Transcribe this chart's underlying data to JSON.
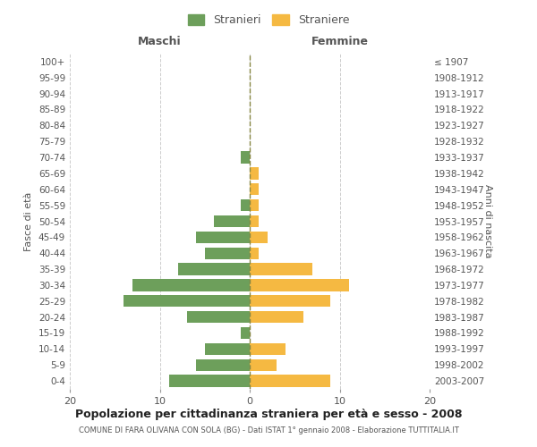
{
  "age_groups": [
    "0-4",
    "5-9",
    "10-14",
    "15-19",
    "20-24",
    "25-29",
    "30-34",
    "35-39",
    "40-44",
    "45-49",
    "50-54",
    "55-59",
    "60-64",
    "65-69",
    "70-74",
    "75-79",
    "80-84",
    "85-89",
    "90-94",
    "95-99",
    "100+"
  ],
  "birth_years": [
    "2003-2007",
    "1998-2002",
    "1993-1997",
    "1988-1992",
    "1983-1987",
    "1978-1982",
    "1973-1977",
    "1968-1972",
    "1963-1967",
    "1958-1962",
    "1953-1957",
    "1948-1952",
    "1943-1947",
    "1938-1942",
    "1933-1937",
    "1928-1932",
    "1923-1927",
    "1918-1922",
    "1913-1917",
    "1908-1912",
    "≤ 1907"
  ],
  "maschi": [
    9,
    6,
    5,
    1,
    7,
    14,
    13,
    8,
    5,
    6,
    4,
    1,
    0,
    0,
    1,
    0,
    0,
    0,
    0,
    0,
    0
  ],
  "femmine": [
    9,
    3,
    4,
    0,
    6,
    9,
    11,
    7,
    1,
    2,
    1,
    1,
    1,
    1,
    0,
    0,
    0,
    0,
    0,
    0,
    0
  ],
  "color_maschi": "#6d9f5b",
  "color_femmine": "#f5b942",
  "title": "Popolazione per cittadinanza straniera per età e sesso - 2008",
  "subtitle": "COMUNE DI FARA OLIVANA CON SOLA (BG) - Dati ISTAT 1° gennaio 2008 - Elaborazione TUTTITALIA.IT",
  "xlabel_left": "Maschi",
  "xlabel_right": "Femmine",
  "ylabel_left": "Fasce di età",
  "ylabel_right": "Anni di nascita",
  "xlim": 20,
  "legend_maschi": "Stranieri",
  "legend_femmine": "Straniere",
  "bg_color": "#ffffff",
  "grid_color": "#cccccc",
  "text_color": "#555555",
  "axis_line_color": "#999999"
}
